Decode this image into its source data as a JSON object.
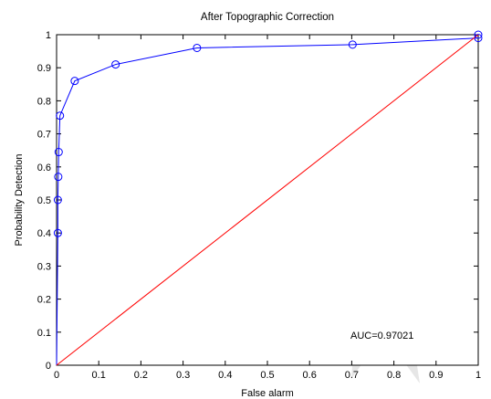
{
  "chart_data": {
    "type": "line",
    "title": "After Topographic Correction",
    "xlabel": "False alarm",
    "ylabel": "Probability Detection",
    "xlim": [
      0,
      1
    ],
    "ylim": [
      0,
      1
    ],
    "xticks": [
      0,
      0.1,
      0.2,
      0.3,
      0.4,
      0.5,
      0.6,
      0.7,
      0.8,
      0.9,
      1
    ],
    "yticks": [
      0,
      0.1,
      0.2,
      0.3,
      0.4,
      0.5,
      0.6,
      0.7,
      0.8,
      0.9,
      1
    ],
    "xtick_labels": [
      "0",
      "0.1",
      "0.2",
      "0.3",
      "0.4",
      "0.5",
      "0.6",
      "0.7",
      "0.8",
      "0.9",
      "1"
    ],
    "ytick_labels": [
      "0",
      "0.1",
      "0.2",
      "0.3",
      "0.4",
      "0.5",
      "0.6",
      "0.7",
      "0.8",
      "0.9",
      "1"
    ],
    "grid": false,
    "legend": "none",
    "annotation": "AUC=0.97021",
    "series": [
      {
        "color": "#0000ff",
        "marker": "circle",
        "x": [
          0,
          0.003,
          0.003,
          0.004,
          0.005,
          0.008,
          0.043,
          0.14,
          0.333,
          0.702,
          1
        ],
        "y": [
          0,
          0.4,
          0.5,
          0.57,
          0.645,
          0.755,
          0.86,
          0.91,
          0.96,
          0.97,
          0.99
        ]
      },
      {
        "color": "#ff0000",
        "marker": "none",
        "x": [
          0,
          1
        ],
        "y": [
          0,
          1
        ]
      }
    ],
    "endpoint_marker": {
      "x": 1,
      "y": 1
    }
  }
}
